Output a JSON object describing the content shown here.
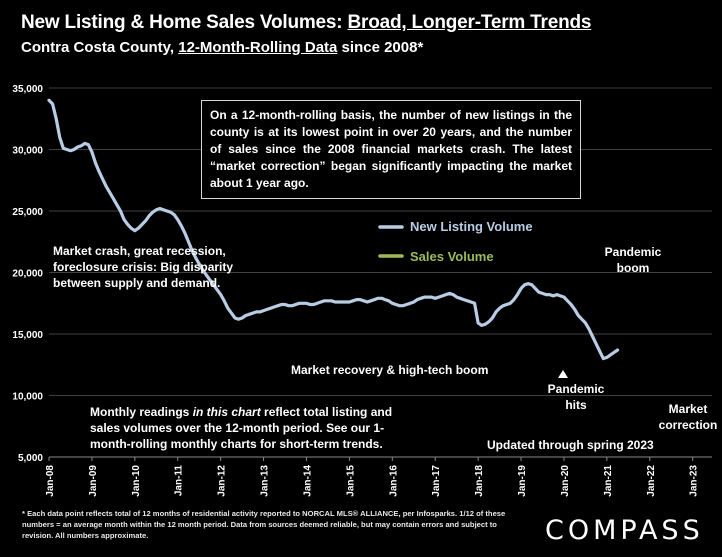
{
  "title": {
    "part1": "New Listing & Home Sales Volumes: ",
    "part2": "Broad, Longer-Term Trends"
  },
  "subtitle": {
    "part1": "Contra Costa County, ",
    "part2": "12-Month-Rolling Data",
    "part3": " since 2008*"
  },
  "annotations": {
    "box": "On a 12-month-rolling basis, the number of new listings in the county is at its lowest point in over 20 years, and the number of sales since the 2008 financial markets crash. The latest “market correction” began significantly impacting the market about 1 year ago.",
    "crash": "Market crash,  great recession, foreclosure crisis: Big disparity between supply and demand.",
    "recovery": "Market recovery & high-tech boom",
    "pandemic_boom": "Pandemic boom",
    "pandemic_hits": "Pandemic hits",
    "correction": "Market correction",
    "monthly": "Monthly readings in this chart reflect total listing and sales volumes over the 12-month period. See our 1-month-rolling monthly charts for short-term trends.",
    "updated": "Updated through spring 2023"
  },
  "footnote": "* Each data point reflects total of 12 months of residential activity reported to NORCAL MLS® ALLIANCE, per Infosparks. 1/12 of these numbers = an average month within the 12 month period. Data from sources deemed reliable, but may contain errors and subject to revision. All numbers approximate.",
  "logo": "COMPASS",
  "colors": {
    "background": "#000000",
    "new_listing": "#b8cce4",
    "sales": "#9bbb59",
    "grid": "#404040",
    "text": "#ffffff"
  },
  "chart_data": {
    "type": "line",
    "x_tick_labels": [
      "Jan-08",
      "Jan-09",
      "Jan-10",
      "Jan-11",
      "Jan-12",
      "Jan-13",
      "Jan-14",
      "Jan-15",
      "Jan-16",
      "Jan-17",
      "Jan-18",
      "Jan-19",
      "Jan-20",
      "Jan-21",
      "Jan-22",
      "Jan-23"
    ],
    "y_tick_labels": [
      "5,000",
      "10,000",
      "15,000",
      "20,000",
      "25,000",
      "30,000",
      "35,000"
    ],
    "ylim": [
      5000,
      35000
    ],
    "grid": "horizontal",
    "legend": "inside, center-right",
    "series": [
      {
        "name": "New Listing Volume",
        "color": "#b8cce4",
        "points": [
          [
            "2008-01",
            34000
          ],
          [
            "2008-02",
            33700
          ],
          [
            "2008-03",
            32500
          ],
          [
            "2008-04",
            31000
          ],
          [
            "2008-05",
            30100
          ],
          [
            "2008-06",
            30000
          ],
          [
            "2008-07",
            29900
          ],
          [
            "2008-08",
            30000
          ],
          [
            "2008-09",
            30200
          ],
          [
            "2008-10",
            30300
          ],
          [
            "2008-11",
            30500
          ],
          [
            "2008-12",
            30400
          ],
          [
            "2009-01",
            29800
          ],
          [
            "2009-02",
            28900
          ],
          [
            "2009-03",
            28200
          ],
          [
            "2009-04",
            27600
          ],
          [
            "2009-05",
            27000
          ],
          [
            "2009-06",
            26500
          ],
          [
            "2009-07",
            26000
          ],
          [
            "2009-08",
            25500
          ],
          [
            "2009-09",
            25000
          ],
          [
            "2009-10",
            24300
          ],
          [
            "2009-11",
            23900
          ],
          [
            "2009-12",
            23600
          ],
          [
            "2010-01",
            23400
          ],
          [
            "2010-02",
            23600
          ],
          [
            "2010-03",
            23900
          ],
          [
            "2010-04",
            24200
          ],
          [
            "2010-05",
            24600
          ],
          [
            "2010-06",
            24900
          ],
          [
            "2010-07",
            25100
          ],
          [
            "2010-08",
            25200
          ],
          [
            "2010-09",
            25100
          ],
          [
            "2010-10",
            25000
          ],
          [
            "2010-11",
            24900
          ],
          [
            "2010-12",
            24700
          ],
          [
            "2011-01",
            24300
          ],
          [
            "2011-02",
            23800
          ],
          [
            "2011-03",
            23200
          ],
          [
            "2011-04",
            22500
          ],
          [
            "2011-05",
            21800
          ],
          [
            "2011-06",
            21200
          ],
          [
            "2011-07",
            20700
          ],
          [
            "2011-08",
            20200
          ],
          [
            "2011-09",
            19800
          ],
          [
            "2011-10",
            19400
          ],
          [
            "2011-11",
            19000
          ],
          [
            "2011-12",
            18600
          ],
          [
            "2012-01",
            18200
          ],
          [
            "2012-02",
            17700
          ],
          [
            "2012-03",
            17100
          ],
          [
            "2012-04",
            16700
          ],
          [
            "2012-05",
            16300
          ],
          [
            "2012-06",
            16200
          ],
          [
            "2012-07",
            16300
          ],
          [
            "2012-08",
            16500
          ],
          [
            "2012-09",
            16600
          ],
          [
            "2012-10",
            16700
          ],
          [
            "2012-11",
            16800
          ],
          [
            "2012-12",
            16800
          ],
          [
            "2013-01",
            16900
          ],
          [
            "2013-02",
            17000
          ],
          [
            "2013-03",
            17100
          ],
          [
            "2013-04",
            17200
          ],
          [
            "2013-05",
            17300
          ],
          [
            "2013-06",
            17400
          ],
          [
            "2013-07",
            17400
          ],
          [
            "2013-08",
            17300
          ],
          [
            "2013-09",
            17300
          ],
          [
            "2013-10",
            17400
          ],
          [
            "2013-11",
            17500
          ],
          [
            "2013-12",
            17500
          ],
          [
            "2014-01",
            17500
          ],
          [
            "2014-02",
            17400
          ],
          [
            "2014-03",
            17400
          ],
          [
            "2014-04",
            17500
          ],
          [
            "2014-05",
            17600
          ],
          [
            "2014-06",
            17700
          ],
          [
            "2014-07",
            17700
          ],
          [
            "2014-08",
            17700
          ],
          [
            "2014-09",
            17600
          ],
          [
            "2014-10",
            17600
          ],
          [
            "2014-11",
            17600
          ],
          [
            "2014-12",
            17600
          ],
          [
            "2015-01",
            17600
          ],
          [
            "2015-02",
            17700
          ],
          [
            "2015-03",
            17800
          ],
          [
            "2015-04",
            17800
          ],
          [
            "2015-05",
            17700
          ],
          [
            "2015-06",
            17600
          ],
          [
            "2015-07",
            17700
          ],
          [
            "2015-08",
            17800
          ],
          [
            "2015-09",
            17900
          ],
          [
            "2015-10",
            17900
          ],
          [
            "2015-11",
            17800
          ],
          [
            "2015-12",
            17700
          ],
          [
            "2016-01",
            17500
          ],
          [
            "2016-02",
            17400
          ],
          [
            "2016-03",
            17300
          ],
          [
            "2016-04",
            17300
          ],
          [
            "2016-05",
            17400
          ],
          [
            "2016-06",
            17500
          ],
          [
            "2016-07",
            17600
          ],
          [
            "2016-08",
            17800
          ],
          [
            "2016-09",
            17900
          ],
          [
            "2016-10",
            18000
          ],
          [
            "2016-11",
            18000
          ],
          [
            "2016-12",
            18000
          ],
          [
            "2017-01",
            17900
          ],
          [
            "2017-02",
            18000
          ],
          [
            "2017-03",
            18100
          ],
          [
            "2017-04",
            18200
          ],
          [
            "2017-05",
            18300
          ],
          [
            "2017-06",
            18200
          ],
          [
            "2017-07",
            18000
          ],
          [
            "2017-08",
            17900
          ],
          [
            "2017-09",
            17800
          ],
          [
            "2017-10",
            17700
          ],
          [
            "2017-11",
            17600
          ],
          [
            "2017-12",
            17500
          ],
          [
            "2018-01",
            15900
          ],
          [
            "2018-02",
            15700
          ],
          [
            "2018-03",
            15800
          ],
          [
            "2018-04",
            16000
          ],
          [
            "2018-05",
            16300
          ],
          [
            "2018-06",
            16800
          ],
          [
            "2018-07",
            17100
          ],
          [
            "2018-08",
            17300
          ],
          [
            "2018-09",
            17400
          ],
          [
            "2018-10",
            17500
          ],
          [
            "2018-11",
            17800
          ],
          [
            "2018-12",
            18200
          ],
          [
            "2019-01",
            18700
          ],
          [
            "2019-02",
            19000
          ],
          [
            "2019-03",
            19100
          ],
          [
            "2019-04",
            19000
          ],
          [
            "2019-05",
            18700
          ],
          [
            "2019-06",
            18400
          ],
          [
            "2019-07",
            18300
          ],
          [
            "2019-08",
            18200
          ],
          [
            "2019-09",
            18200
          ],
          [
            "2019-10",
            18100
          ],
          [
            "2019-11",
            18200
          ],
          [
            "2019-12",
            18100
          ],
          [
            "2020-01",
            18000
          ],
          [
            "2020-02",
            17700
          ],
          [
            "2020-03",
            17400
          ],
          [
            "2020-04",
            17000
          ],
          [
            "2020-05",
            16500
          ],
          [
            "2020-06",
            16200
          ],
          [
            "2020-07",
            15900
          ],
          [
            "2020-08",
            15400
          ],
          [
            "2020-09",
            14800
          ],
          [
            "2020-10",
            14200
          ],
          [
            "2020-11",
            13600
          ],
          [
            "2020-12",
            13000
          ],
          [
            "2021-01",
            13100
          ],
          [
            "2021-02",
            13300
          ],
          [
            "2021-03",
            13500
          ],
          [
            "2021-04",
            13700
          ]
        ]
      },
      {
        "name": "Sales Volume",
        "color": "#9bbb59",
        "points": []
      }
    ]
  }
}
